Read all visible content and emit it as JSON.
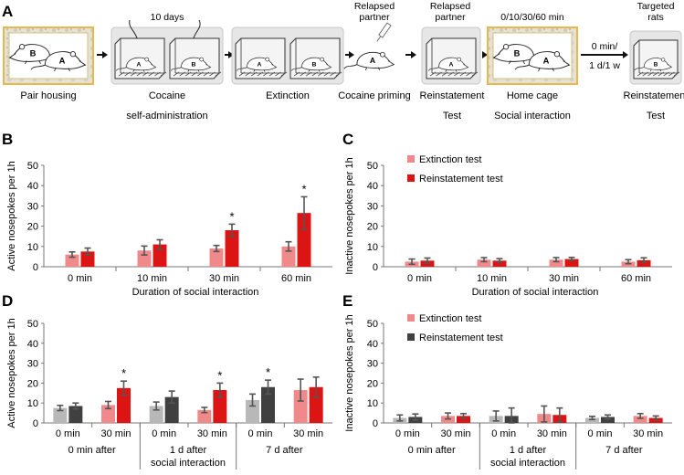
{
  "colors": {
    "extinction_pink": "#f08a8a",
    "reinstatement_red": "#dc1414",
    "extinction_grey": "#b8b8b8",
    "reinstatement_dark": "#404040",
    "error_bar": "#555555",
    "cage_border_home": "#e8b84a",
    "cage_fill": "#e6e6e6",
    "arrow": "#111111"
  },
  "panel_labels": {
    "a": "A",
    "b": "B",
    "c": "C",
    "d": "D",
    "e": "E"
  },
  "protocol": {
    "above_labels": {
      "days": "10 days",
      "relapsed_1_line1": "Relapsed",
      "relapsed_1_line2": "partner",
      "relapsed_2_line1": "Relapsed",
      "relapsed_2_line2": "partner",
      "minutes": "0/10/30/60 min",
      "targeted_line1": "Targeted",
      "targeted_line2": "rats"
    },
    "arrow_top": "0 min/",
    "arrow_bottom": "1 d/1 w",
    "rat_labels": {
      "a": "A",
      "b": "B"
    },
    "stages": [
      {
        "line1": "Pair housing",
        "line2": ""
      },
      {
        "line1": "Cocaine",
        "line2": "self-administration"
      },
      {
        "line1": "Extinction",
        "line2": ""
      },
      {
        "line1": "Cocaine priming",
        "line2": ""
      },
      {
        "line1": "Reinstatement",
        "line2": "Test"
      },
      {
        "line1": "Home cage",
        "line2": "Social interaction"
      },
      {
        "line1": "Reinstatement",
        "line2": "Test"
      }
    ]
  },
  "chart_data": [
    {
      "id": "B",
      "type": "bar",
      "ylabel": "Active nosepokes per 1h",
      "xlabel": "Duration of social interaction",
      "ylim": [
        0,
        50
      ],
      "yticks": [
        "0",
        "10",
        "20",
        "30",
        "40",
        "50"
      ],
      "categories": [
        "0 min",
        "10 min",
        "30 min",
        "60 min"
      ],
      "series": [
        {
          "name": "Extinction test",
          "values": [
            6,
            8,
            9,
            10
          ],
          "errors": [
            1.3,
            2.2,
            1.5,
            2.3
          ]
        },
        {
          "name": "Reinstatement test",
          "values": [
            7.5,
            11,
            18,
            26.5
          ],
          "errors": [
            1.7,
            2.3,
            3,
            8
          ]
        }
      ],
      "significance": [
        "",
        "",
        "*",
        "*"
      ]
    },
    {
      "id": "C",
      "type": "bar",
      "ylabel": "Inactive nosepokes per 1h",
      "xlabel": "Duration of social interaction",
      "ylim": [
        0,
        50
      ],
      "yticks": [
        "0",
        "10",
        "20",
        "30",
        "40",
        "50"
      ],
      "categories": [
        "0 min",
        "10 min",
        "30 min",
        "60 min"
      ],
      "legend": {
        "position": "top-left",
        "entries": [
          "Extinction test",
          "Reinstatement test"
        ]
      },
      "series": [
        {
          "name": "Extinction test",
          "values": [
            2.5,
            3.5,
            3.5,
            2.5
          ],
          "errors": [
            1.3,
            1,
            1,
            1
          ]
        },
        {
          "name": "Reinstatement test",
          "values": [
            3,
            3,
            3.8,
            3.2
          ],
          "errors": [
            1.3,
            1,
            0.8,
            1.2
          ]
        }
      ]
    },
    {
      "id": "D",
      "type": "bar",
      "ylabel": "Active nosepokes per 1h",
      "ylim": [
        0,
        50
      ],
      "yticks": [
        "0",
        "10",
        "20",
        "30",
        "40",
        "50"
      ],
      "categories": [
        "0 min",
        "30 min",
        "0 min",
        "30 min",
        "0 min",
        "30 min"
      ],
      "groups": [
        {
          "line1": "0 min after",
          "line2": ""
        },
        {
          "line1": "1 d after",
          "line2": "social interaction"
        },
        {
          "line1": "7 d after",
          "line2": ""
        }
      ],
      "series": [
        {
          "name": "Extinction test",
          "values": [
            7.5,
            9,
            8.5,
            6.5,
            11.5,
            16.5
          ],
          "errors": [
            1.3,
            1.8,
            2,
            1.3,
            3,
            5.5
          ]
        },
        {
          "name": "Reinstatement test",
          "values": [
            8.5,
            17.5,
            13,
            16.5,
            18,
            18
          ],
          "errors": [
            1.5,
            3.5,
            3,
            3.5,
            3.5,
            5
          ]
        }
      ],
      "bar_colors": [
        [
          "#b8b8b8",
          "#404040"
        ],
        [
          "#f08a8a",
          "#dc1414"
        ],
        [
          "#b8b8b8",
          "#404040"
        ],
        [
          "#f08a8a",
          "#dc1414"
        ],
        [
          "#b8b8b8",
          "#404040"
        ],
        [
          "#f08a8a",
          "#dc1414"
        ]
      ],
      "significance": [
        "",
        "*",
        "",
        "*",
        "*",
        ""
      ]
    },
    {
      "id": "E",
      "type": "bar",
      "ylabel": "Inactive nosepokes per 1h",
      "ylim": [
        0,
        50
      ],
      "yticks": [
        "0",
        "10",
        "20",
        "30",
        "40",
        "50"
      ],
      "categories": [
        "0 min",
        "30 min",
        "0 min",
        "30 min",
        "0 min",
        "30 min"
      ],
      "groups": [
        {
          "line1": "0 min after",
          "line2": ""
        },
        {
          "line1": "1 d after",
          "line2": "social interaction"
        },
        {
          "line1": "7 d after",
          "line2": ""
        }
      ],
      "legend": {
        "position": "top-left",
        "entries": [
          "Extinction test",
          "Reinstatement test"
        ]
      },
      "series": [
        {
          "name": "Extinction test",
          "values": [
            2.5,
            3.5,
            3.5,
            4.5,
            2.5,
            3.5
          ],
          "errors": [
            1.5,
            1.5,
            2.5,
            4,
            0.8,
            1.2
          ]
        },
        {
          "name": "Reinstatement test",
          "values": [
            3,
            3.5,
            3.5,
            4,
            3,
            2.5
          ],
          "errors": [
            1.5,
            1.2,
            4,
            3.5,
            1,
            1
          ]
        }
      ],
      "bar_colors": [
        [
          "#b8b8b8",
          "#404040"
        ],
        [
          "#f08a8a",
          "#dc1414"
        ],
        [
          "#b8b8b8",
          "#404040"
        ],
        [
          "#f08a8a",
          "#dc1414"
        ],
        [
          "#b8b8b8",
          "#404040"
        ],
        [
          "#f08a8a",
          "#dc1414"
        ]
      ]
    }
  ]
}
